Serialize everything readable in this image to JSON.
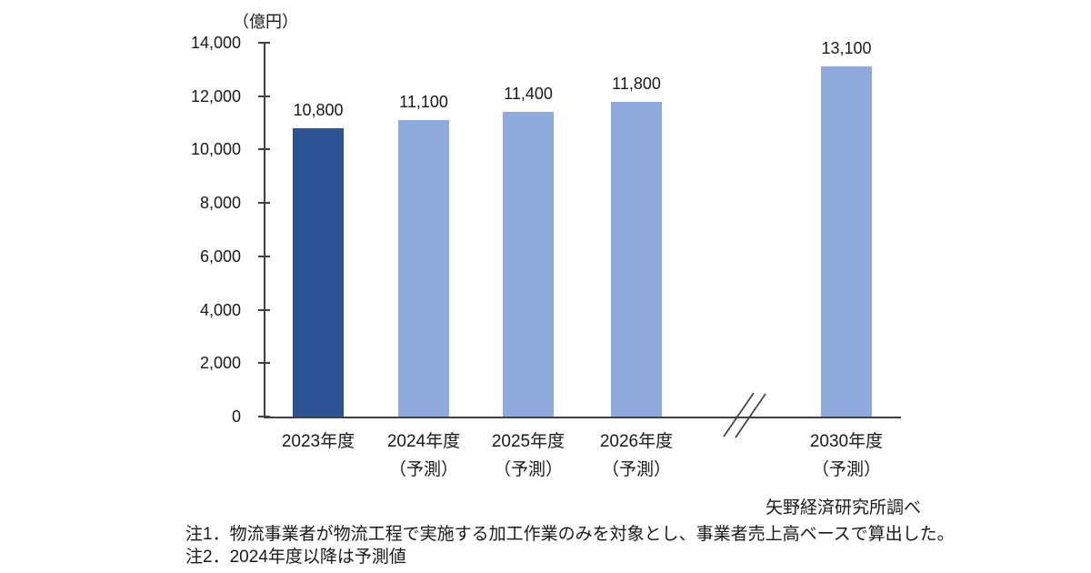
{
  "chart_data": {
    "type": "bar",
    "title": "",
    "unit_label": "（億円）",
    "categories": [
      "2023年度",
      "2024年度",
      "2025年度",
      "2026年度",
      "2030年度"
    ],
    "category_sublabels": [
      "",
      "（予測）",
      "（予測）",
      "（予測）",
      "（予測）"
    ],
    "values": [
      10800,
      11100,
      11400,
      11800,
      13100
    ],
    "value_labels": [
      "10,800",
      "11,100",
      "11,400",
      "11,800",
      "13,100"
    ],
    "ylim": [
      0,
      14000
    ],
    "yticks": [
      0,
      2000,
      4000,
      6000,
      8000,
      10000,
      12000,
      14000
    ],
    "ytick_labels": [
      "0",
      "2,000",
      "4,000",
      "6,000",
      "8,000",
      "10,000",
      "12,000",
      "14,000"
    ],
    "grid": false,
    "legend": false,
    "axis_break_between": [
      "2026年度",
      "2030年度"
    ],
    "bar_colors": [
      "#2E5394",
      "#8FAADC",
      "#8FAADC",
      "#8FAADC",
      "#8FAADC"
    ],
    "colors": {
      "highlight_bar": "#2E5394",
      "forecast_bar": "#8FAADC",
      "axis": "#404040",
      "text": "#1a1a1a"
    }
  },
  "source": "矢野経済研究所調べ",
  "notes": [
    "注1．物流事業者が物流工程で実施する加工作業のみを対象とし、事業者売上高ベースで算出した。",
    "注2．2024年度以降は予測値"
  ]
}
